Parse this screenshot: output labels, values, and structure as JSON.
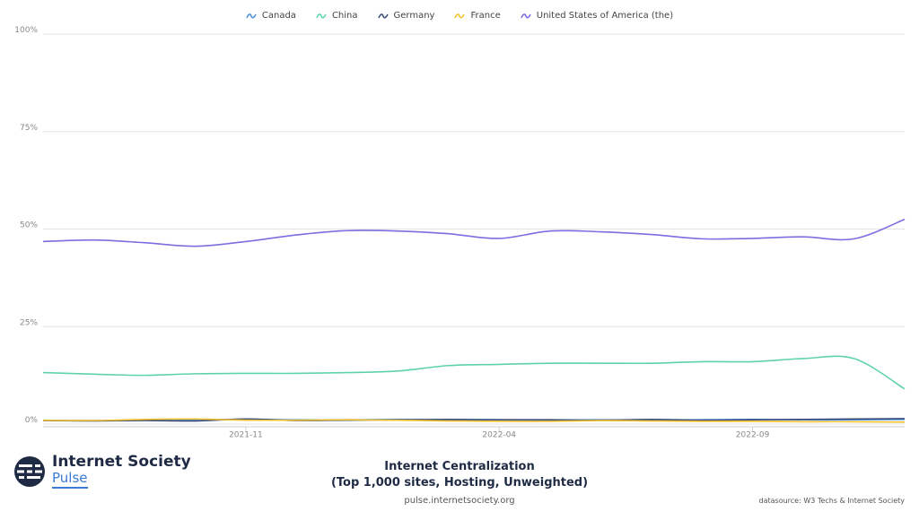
{
  "chart_data": {
    "type": "line",
    "x": [
      "2021-07",
      "2021-08",
      "2021-09",
      "2021-10",
      "2021-11",
      "2021-12",
      "2022-01",
      "2022-02",
      "2022-03",
      "2022-04",
      "2022-05",
      "2022-06",
      "2022-07",
      "2022-08",
      "2022-09",
      "2022-10",
      "2022-11",
      "2022-12"
    ],
    "ylim": [
      0,
      100
    ],
    "yticks": [
      0,
      25,
      50,
      75,
      100
    ],
    "ytick_labels": [
      "0%",
      "25%",
      "50%",
      "75%",
      "100%"
    ],
    "xtick_labels": [
      {
        "x": "2021-11",
        "label": "2021-11"
      },
      {
        "x": "2022-04",
        "label": "2022-04"
      },
      {
        "x": "2022-09",
        "label": "2022-09"
      }
    ],
    "grid": true,
    "legend_position": "top-center",
    "series": [
      {
        "name": "Canada",
        "color": "#4a90e2",
        "values": [
          1.0,
          0.9,
          1.0,
          1.1,
          1.2,
          1.1,
          1.1,
          1.2,
          1.1,
          1.1,
          1.0,
          1.1,
          1.0,
          1.1,
          1.2,
          1.1,
          1.1,
          1.2
        ]
      },
      {
        "name": "China",
        "color": "#5fd3a7",
        "values": [
          13.2,
          12.8,
          12.5,
          12.9,
          13.0,
          13.0,
          13.2,
          13.6,
          15.0,
          15.3,
          15.6,
          15.6,
          15.6,
          16.0,
          16.0,
          16.8,
          16.8,
          9.0
        ]
      },
      {
        "name": "Germany",
        "color": "#3d4f7c",
        "values": [
          0.9,
          0.8,
          0.9,
          0.8,
          1.3,
          0.9,
          1.0,
          1.1,
          1.2,
          1.1,
          1.1,
          1.0,
          1.2,
          1.0,
          1.1,
          1.2,
          1.3,
          1.4
        ]
      },
      {
        "name": "France",
        "color": "#f2c12e",
        "values": [
          1.0,
          0.9,
          1.2,
          1.3,
          1.0,
          1.0,
          1.1,
          1.0,
          0.8,
          0.7,
          0.7,
          0.9,
          0.8,
          0.7,
          0.7,
          0.6,
          0.6,
          0.5
        ]
      },
      {
        "name": "United States of America (the)",
        "color": "#7a6ee0",
        "values": [
          46.8,
          47.2,
          46.5,
          45.6,
          46.8,
          48.5,
          49.6,
          49.5,
          48.8,
          47.6,
          49.5,
          49.3,
          48.6,
          47.5,
          47.6,
          48.0,
          47.5,
          52.5
        ]
      }
    ]
  },
  "footer": {
    "logo_name": "Internet Society",
    "logo_sub": "Pulse",
    "title_line1": "Internet Centralization",
    "title_line2": "(Top 1,000 sites, Hosting, Unweighted)",
    "url": "pulse.internetsociety.org",
    "datasource": "datasource: W3 Techs & Internet Society"
  }
}
